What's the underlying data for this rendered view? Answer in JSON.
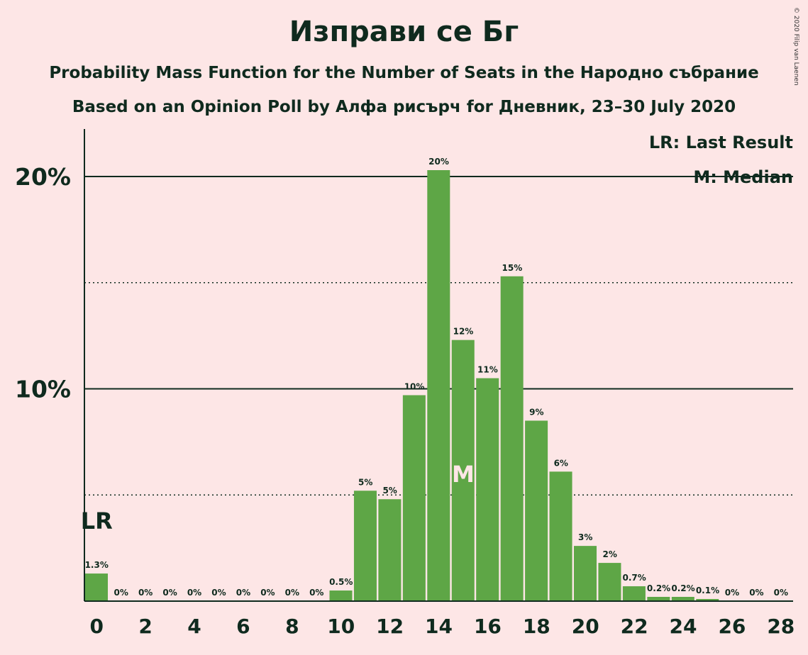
{
  "title": "Изправи се Бг",
  "subtitle1": "Probability Mass Function for the Number of Seats in the Народно събрание",
  "subtitle2": "Based on an Opinion Poll by Алфа рисърч for Дневник, 23–30 July 2020",
  "copyright": "© 2020 Filip van Laenen",
  "legend": {
    "last_result": "LR: Last Result",
    "median": "M: Median"
  },
  "colors": {
    "background": "#fde6e6",
    "bar": "#5ea646",
    "text": "#0f2a1e",
    "median_marker": "#fde6e6"
  },
  "chart_data": {
    "type": "bar",
    "x": [
      0,
      1,
      2,
      3,
      4,
      5,
      6,
      7,
      8,
      9,
      10,
      11,
      12,
      13,
      14,
      15,
      16,
      17,
      18,
      19,
      20,
      21,
      22,
      23,
      24,
      25,
      26,
      27,
      28
    ],
    "values": [
      1.3,
      0,
      0,
      0,
      0,
      0,
      0,
      0,
      0,
      0,
      0.5,
      5.2,
      4.8,
      9.7,
      20.3,
      12.3,
      10.5,
      15.3,
      8.5,
      6.1,
      2.6,
      1.8,
      0.7,
      0.2,
      0.2,
      0.1,
      0,
      0,
      0
    ],
    "data_labels": [
      "1.3%",
      "0%",
      "0%",
      "0%",
      "0%",
      "0%",
      "0%",
      "0%",
      "0%",
      "0%",
      "0.5%",
      "5%",
      "5%",
      "10%",
      "20%",
      "12%",
      "11%",
      "15%",
      "9%",
      "6%",
      "3%",
      "2%",
      "0.7%",
      "0.2%",
      "0.2%",
      "0.1%",
      "0%",
      "0%",
      "0%"
    ],
    "x_tick_labels": [
      "0",
      "2",
      "4",
      "6",
      "8",
      "10",
      "12",
      "14",
      "16",
      "18",
      "20",
      "22",
      "24",
      "26",
      "28"
    ],
    "y_tick_labels": [
      "10%",
      "20%"
    ],
    "ylim": [
      0,
      22
    ],
    "solid_gridlines": [
      10,
      20
    ],
    "dotted_gridlines": [
      5,
      15
    ],
    "last_result": {
      "seats": 0,
      "label": "LR"
    },
    "median": {
      "seats": 15,
      "label": "M"
    }
  }
}
